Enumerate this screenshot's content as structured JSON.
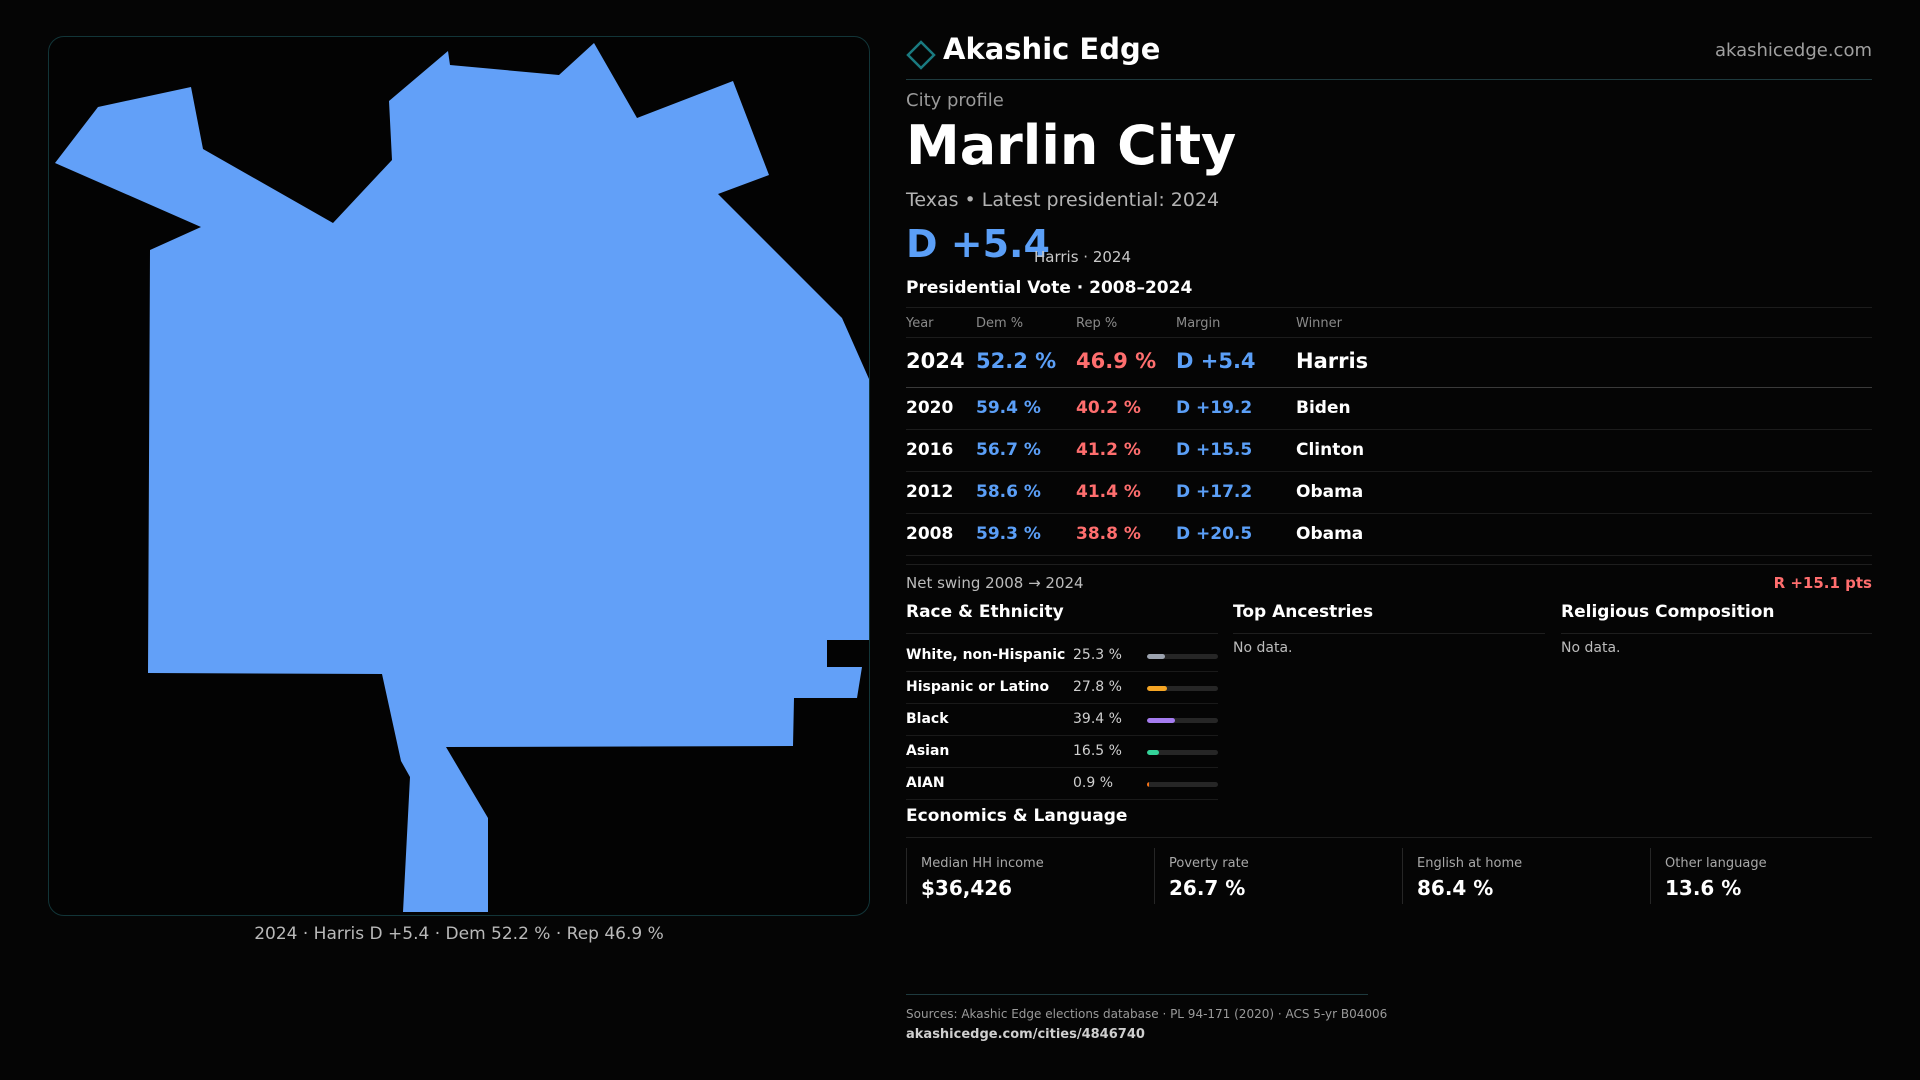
{
  "map": {
    "caption": "2024 · Harris D +5.4 · Dem 52.2 % · Rep 46.9 %",
    "fill_color": "#62a0f8"
  },
  "brand": {
    "name": "Akashic Edge",
    "url": "akashicedge.com",
    "logo_icon": "diamond-outline-icon",
    "accent_color": "#1a7a80"
  },
  "profile": {
    "label": "City profile",
    "city": "Marlin City",
    "subtitle": "Texas • Latest presidential: 2024",
    "headline_margin": "D +5.4",
    "headline_note": "Harris · 2024"
  },
  "presidential": {
    "title": "Presidential Vote · 2008–2024",
    "columns": [
      "Year",
      "Dem %",
      "Rep %",
      "Margin",
      "Winner"
    ],
    "rows": [
      {
        "year": "2024",
        "dem": "52.2 %",
        "rep": "46.9 %",
        "margin": "D +5.4",
        "winner": "Harris"
      },
      {
        "year": "2020",
        "dem": "59.4 %",
        "rep": "40.2 %",
        "margin": "D +19.2",
        "winner": "Biden"
      },
      {
        "year": "2016",
        "dem": "56.7 %",
        "rep": "41.2 %",
        "margin": "D +15.5",
        "winner": "Clinton"
      },
      {
        "year": "2012",
        "dem": "58.6 %",
        "rep": "41.4 %",
        "margin": "D +17.2",
        "winner": "Obama"
      },
      {
        "year": "2008",
        "dem": "59.3 %",
        "rep": "38.8 %",
        "margin": "D +20.5",
        "winner": "Obama"
      }
    ],
    "dem_color": "#5b9ff7",
    "rep_color": "#ff6e6e"
  },
  "swing": {
    "label": "Net swing 2008 → 2024",
    "value": "R +15.1 pts"
  },
  "race": {
    "title": "Race & Ethnicity",
    "items": [
      {
        "name": "White, non-Hispanic",
        "pct": "25.3 %",
        "value": 25.3,
        "color": "#9ca3af"
      },
      {
        "name": "Hispanic or Latino",
        "pct": "27.8 %",
        "value": 27.8,
        "color": "#f5a524"
      },
      {
        "name": "Black",
        "pct": "39.4 %",
        "value": 39.4,
        "color": "#a57cf0"
      },
      {
        "name": "Asian",
        "pct": "16.5 %",
        "value": 16.5,
        "color": "#34d399"
      },
      {
        "name": "AIAN",
        "pct": "0.9 %",
        "value": 0.9,
        "color": "#f97316"
      }
    ]
  },
  "ancestries": {
    "title": "Top Ancestries",
    "empty": "No data."
  },
  "religion": {
    "title": "Religious Composition",
    "empty": "No data."
  },
  "economics": {
    "title": "Economics & Language",
    "items": [
      {
        "label": "Median HH income",
        "value": "$36,426"
      },
      {
        "label": "Poverty rate",
        "value": "26.7 %"
      },
      {
        "label": "English at home",
        "value": "86.4 %"
      },
      {
        "label": "Other language",
        "value": "13.6 %"
      }
    ]
  },
  "footer": {
    "sources": "Sources: Akashic Edge elections database · PL 94-171 (2020) · ACS 5-yr B04006",
    "url": "akashicedge.com/cities/4846740"
  }
}
